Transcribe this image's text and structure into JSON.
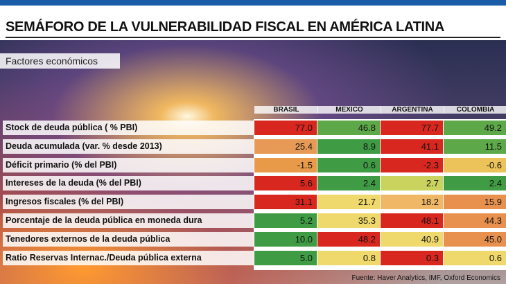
{
  "header": {
    "title": "SEMÁFORO DE LA VULNERABILIDAD FISCAL EN AMÉRICA LATINA",
    "subtitle": "Factores económicos"
  },
  "table": {
    "columns": [
      "BRASIL",
      "MEXICO",
      "ARGENTINA",
      "COLOMBIA"
    ],
    "rows": [
      {
        "label": "Stock de deuda pública ( % PBI)",
        "cells": [
          "77.0",
          "46.8",
          "77.7",
          "49.2"
        ],
        "colors": [
          "#d8271f",
          "#5da848",
          "#d8271f",
          "#5da848"
        ]
      },
      {
        "label": "Deuda acumulada (var. % desde 2013)",
        "cells": [
          "25.4",
          "8.9",
          "41.1",
          "11.5"
        ],
        "colors": [
          "#e79a55",
          "#3f9b44",
          "#d8271f",
          "#5da848"
        ]
      },
      {
        "label": "Déficit primario (% del PBI)",
        "cells": [
          "-1.5",
          "0.6",
          "-2.3",
          "-0.6"
        ],
        "colors": [
          "#e89a48",
          "#3f9b44",
          "#d8271f",
          "#ecc35a"
        ]
      },
      {
        "label": "Intereses de la deuda (% del PBI)",
        "cells": [
          "5.6",
          "2.4",
          "2.7",
          "2.4"
        ],
        "colors": [
          "#d8271f",
          "#3f9b44",
          "#c9d35e",
          "#3f9b44"
        ]
      },
      {
        "label": "Ingresos fiscales (% del PBI)",
        "cells": [
          "31.1",
          "21.7",
          "18.2",
          "15.9"
        ],
        "colors": [
          "#d8271f",
          "#efd96c",
          "#f0b866",
          "#e8914e"
        ]
      },
      {
        "label": "Porcentaje de la deuda pública en moneda dura",
        "cells": [
          "5.2",
          "35.3",
          "48.1",
          "44.3"
        ],
        "colors": [
          "#3f9b44",
          "#efd96c",
          "#d8271f",
          "#e8914e"
        ]
      },
      {
        "label": "Tenedores externos de la deuda pública",
        "cells": [
          "10.0",
          "48.2",
          "40.9",
          "45.0"
        ],
        "colors": [
          "#3f9b44",
          "#d8271f",
          "#efd96c",
          "#e8914e"
        ]
      },
      {
        "label": "Ratio Reservas Internac./Deuda pública externa",
        "cells": [
          "5.0",
          "0.8",
          "0.3",
          "0.6"
        ],
        "colors": [
          "#3f9b44",
          "#efd96c",
          "#d8271f",
          "#efd96c"
        ]
      }
    ]
  },
  "source": "Fuente: Haver Analytics, IMF, Oxford Economics"
}
